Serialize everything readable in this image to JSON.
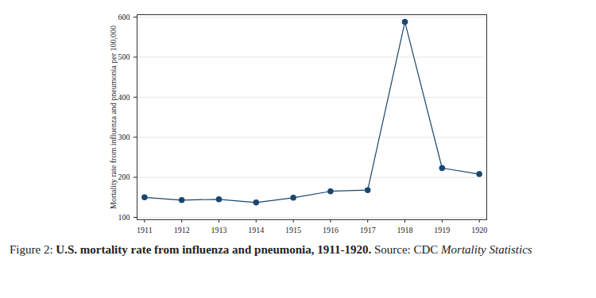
{
  "chart_data": {
    "type": "line",
    "x": [
      1911,
      1912,
      1913,
      1914,
      1915,
      1916,
      1917,
      1918,
      1919,
      1920
    ],
    "values": [
      150,
      143,
      145,
      137,
      149,
      165,
      168,
      588,
      223,
      208
    ],
    "color": "#1a476f",
    "marker": "circle",
    "xlim": [
      1910.8,
      1920.2
    ],
    "xticks": [
      1911,
      1912,
      1913,
      1914,
      1915,
      1916,
      1917,
      1918,
      1919,
      1920
    ],
    "ylim": [
      94,
      606
    ],
    "yticks": [
      100,
      200,
      300,
      400,
      500,
      600
    ],
    "y_label": "Mortality rate from influenza and pneumonia per 100,000",
    "grid": true,
    "caption": {
      "label": "Figure 2:",
      "title": "U.S. mortality rate from influenza and pneumonia, 1911-1920.",
      "source_label": "Source: CDC",
      "source": "Mortality Statistics"
    }
  }
}
